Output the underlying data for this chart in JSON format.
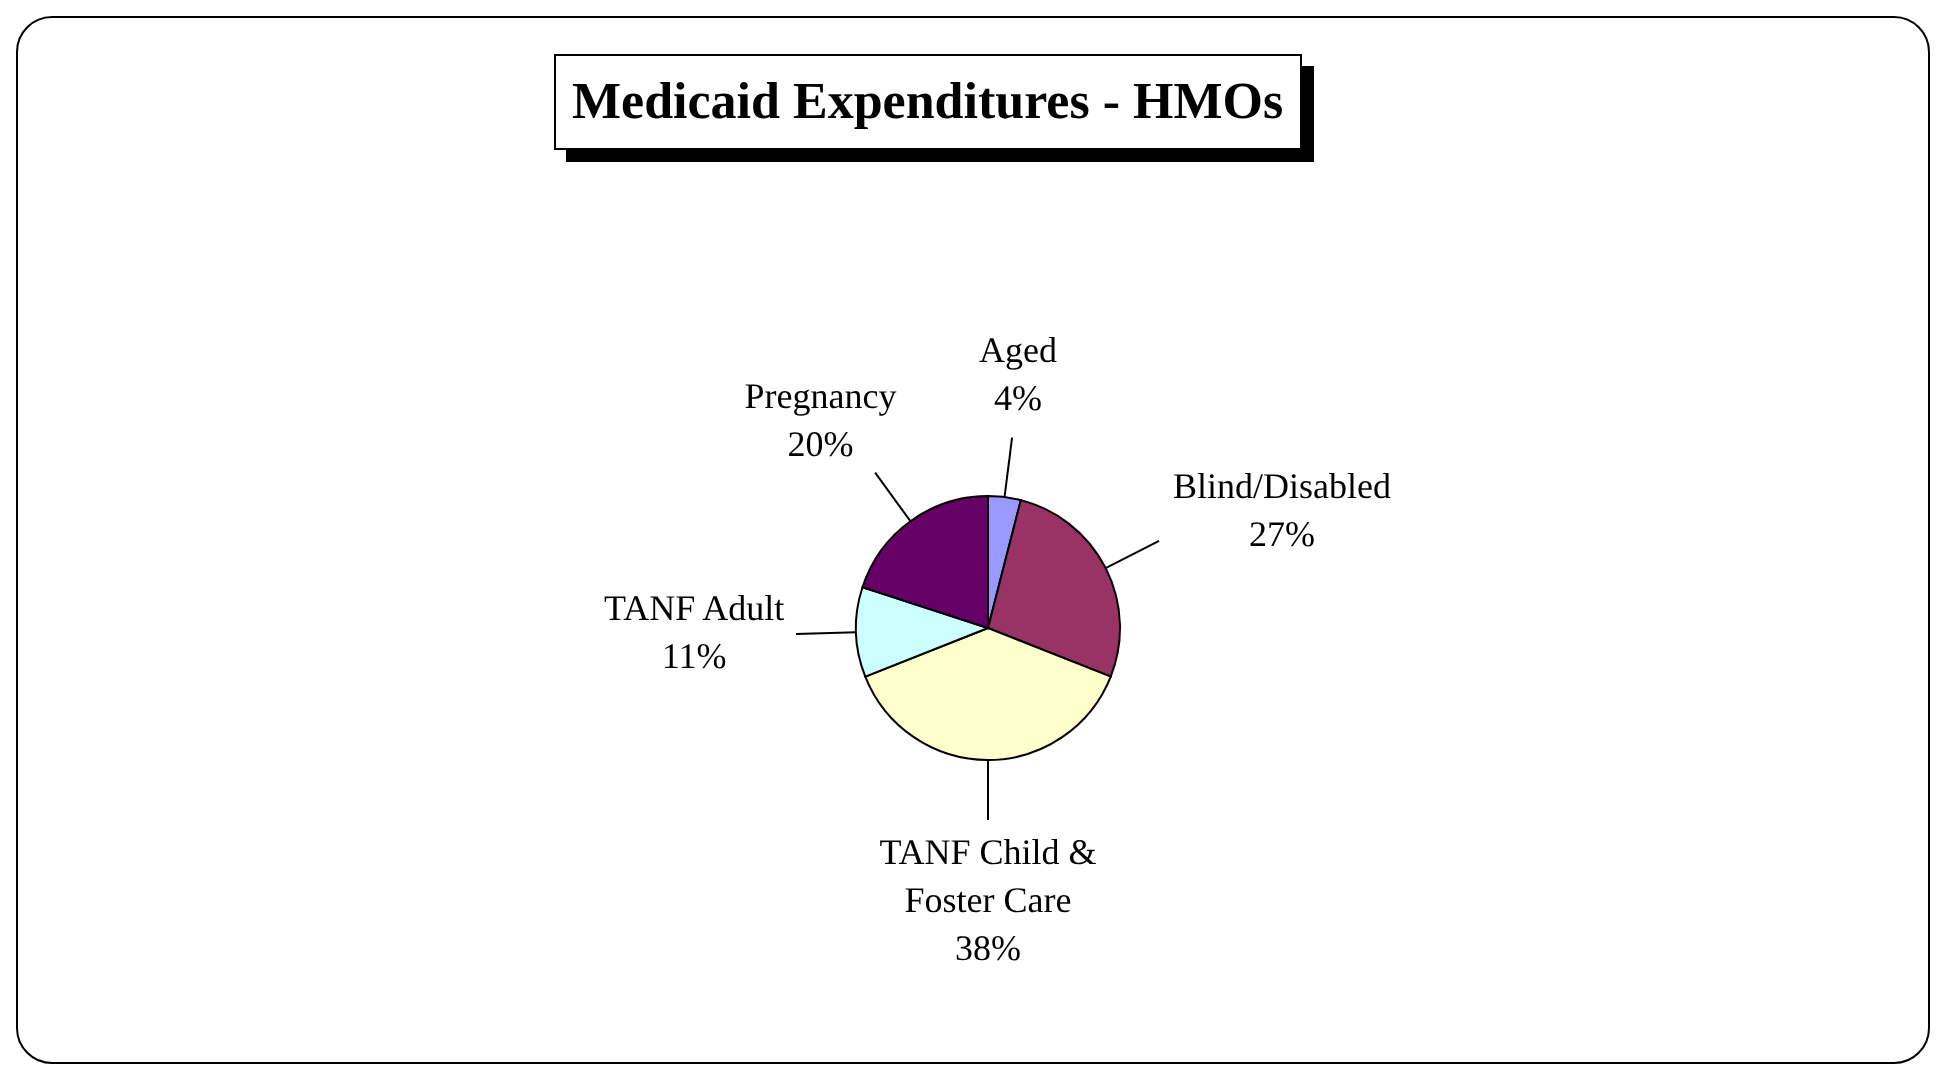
{
  "chart_data": {
    "type": "pie",
    "title": "Medicaid Expenditures - HMOs",
    "categories": [
      "Aged",
      "Blind/Disabled",
      "TANF Child & Foster Care",
      "TANF Adult",
      "Pregnancy"
    ],
    "values": [
      4,
      27,
      38,
      11,
      20
    ],
    "value_labels": [
      "4%",
      "27%",
      "38%",
      "11%",
      "20%"
    ],
    "colors": [
      "#9999ff",
      "#993366",
      "#ffffcc",
      "#ccffff",
      "#660066"
    ]
  }
}
